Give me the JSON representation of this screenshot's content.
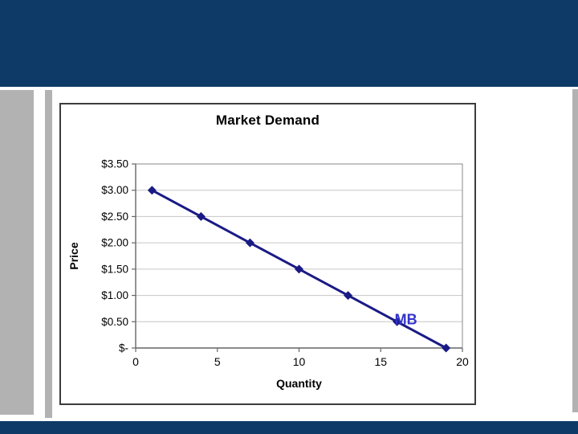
{
  "palette": {
    "navy_band": "#0d3a66",
    "gray_bar": "#b2b2b2",
    "line_color": "#1a1a85",
    "marker_color": "#1a1a85",
    "annotation_color": "#3333cc",
    "gridline_color": "#c6c6c6",
    "axis_color": "#666666",
    "plot_border_color": "#8a8a8a",
    "tick_label_color": "#000000"
  },
  "chart_data": {
    "type": "line",
    "title": "Market Demand",
    "xlabel": "Quantity",
    "ylabel": "Price",
    "x": [
      1,
      4,
      7,
      10,
      13,
      16,
      19
    ],
    "y": [
      3.0,
      2.5,
      2.0,
      1.5,
      1.0,
      0.5,
      0.0
    ],
    "xlim": [
      0,
      20
    ],
    "ylim": [
      0,
      3.5
    ],
    "x_ticks": [
      {
        "value": 0,
        "label": "0"
      },
      {
        "value": 5,
        "label": "5"
      },
      {
        "value": 10,
        "label": "10"
      },
      {
        "value": 15,
        "label": "15"
      },
      {
        "value": 20,
        "label": "20"
      }
    ],
    "y_ticks": [
      {
        "value": 0.0,
        "label": "$-"
      },
      {
        "value": 0.5,
        "label": "$0.50"
      },
      {
        "value": 1.0,
        "label": "$1.00"
      },
      {
        "value": 1.5,
        "label": "$1.50"
      },
      {
        "value": 2.0,
        "label": "$2.00"
      },
      {
        "value": 2.5,
        "label": "$2.50"
      },
      {
        "value": 3.0,
        "label": "$3.00"
      },
      {
        "value": 3.5,
        "label": "$3.50"
      }
    ],
    "grid": "horizontal",
    "legend": "none",
    "marker": "diamond",
    "annotation": {
      "text": "MB",
      "x": 16,
      "y": 0.5
    }
  }
}
